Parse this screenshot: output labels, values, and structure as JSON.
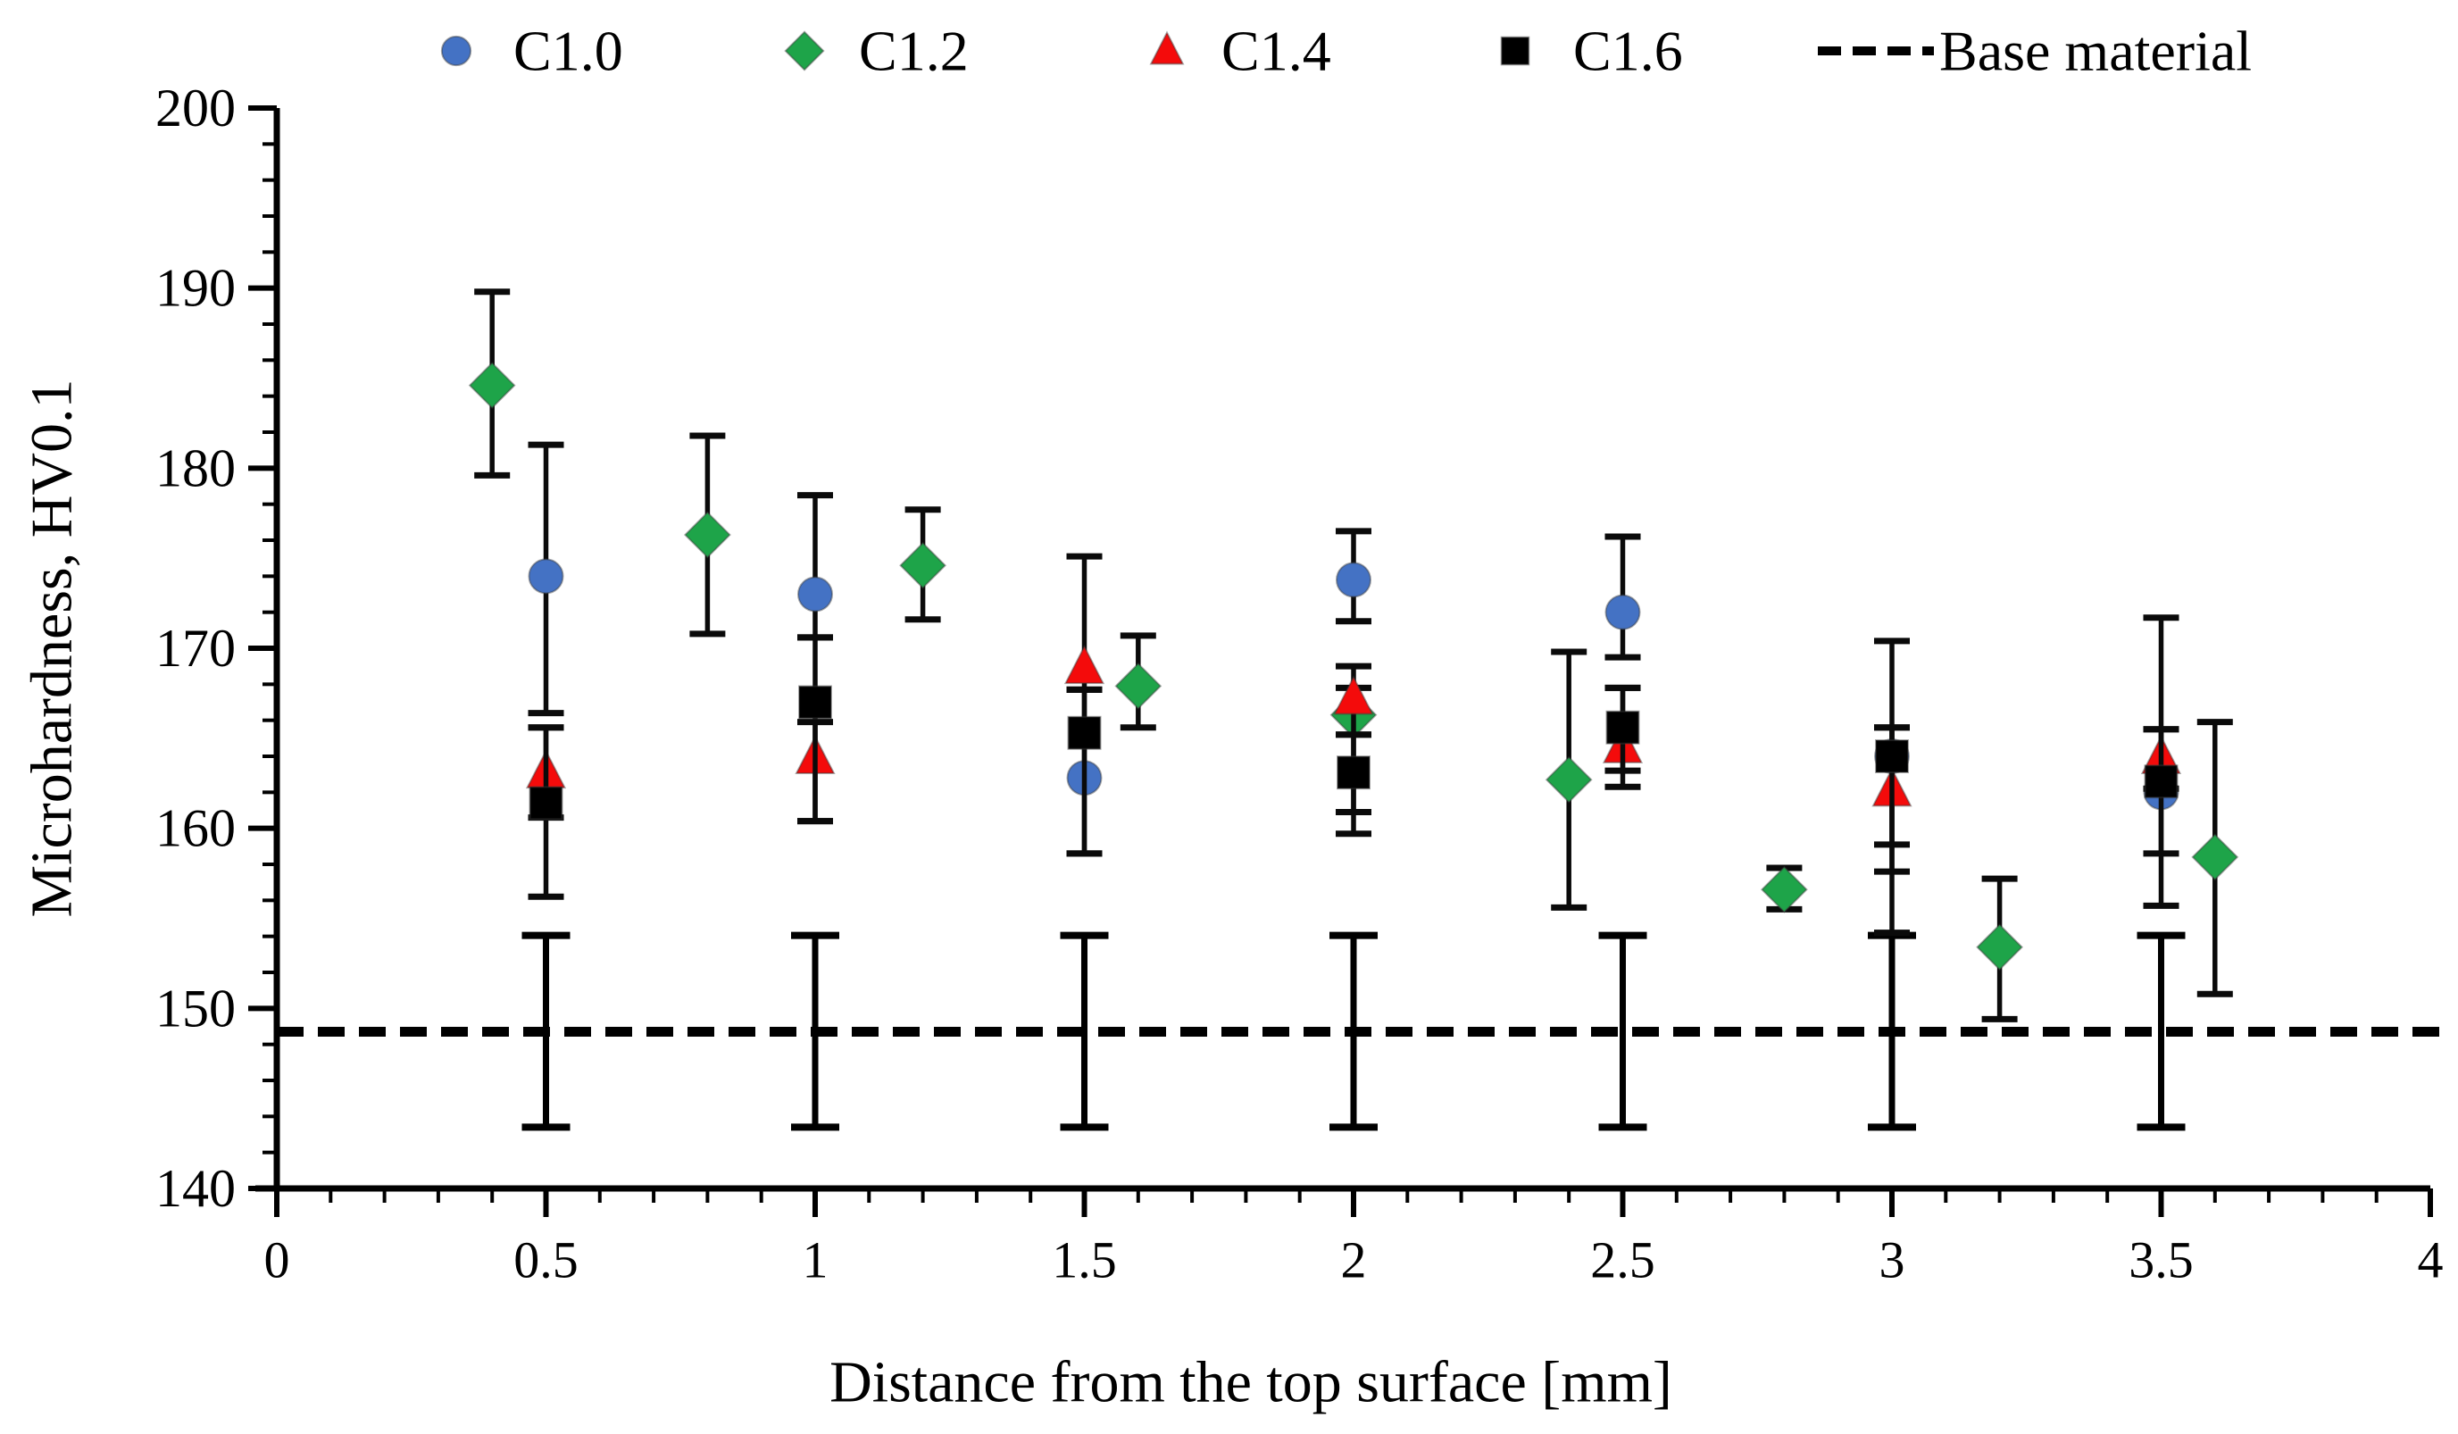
{
  "figure_title": "Microhardness profile chart",
  "chart_data": {
    "type": "scatter",
    "title": "",
    "xlabel": "Distance from the top surface [mm]",
    "ylabel": "Microhardness, HV0.1",
    "xlim": [
      0,
      4
    ],
    "ylim": [
      140,
      200
    ],
    "grid": false,
    "legend_position": "top",
    "x_tick_labels": [
      "0",
      "0.5",
      "1",
      "1.5",
      "2",
      "2.5",
      "3",
      "3.5",
      "4"
    ],
    "x_tick_values": [
      0,
      0.5,
      1,
      1.5,
      2,
      2.5,
      3,
      3.5,
      4
    ],
    "x_minor_step": 0.1,
    "y_tick_labels": [
      "140",
      "150",
      "160",
      "170",
      "180",
      "190",
      "200"
    ],
    "y_tick_values": [
      140,
      150,
      160,
      170,
      180,
      190,
      200
    ],
    "y_minor_step": 2,
    "axis_color": "#000000",
    "series": [
      {
        "name": "C1.0",
        "marker": "circle",
        "color": "#4472C4",
        "points": [
          {
            "x": 0.5,
            "y": 174.0,
            "eu": 7.3,
            "ed": 7.6
          },
          {
            "x": 1.0,
            "y": 173.0,
            "eu": 5.5,
            "ed": 2.4
          },
          {
            "x": 1.5,
            "y": 162.8,
            "eu": 4.9,
            "ed": 4.2
          },
          {
            "x": 2.0,
            "y": 173.8,
            "eu": 2.7,
            "ed": 2.3
          },
          {
            "x": 2.5,
            "y": 172.0,
            "eu": 4.2,
            "ed": 2.5
          },
          {
            "x": 3.0,
            "y": 164.0,
            "eu": 6.4,
            "ed": 6.4
          },
          {
            "x": 3.5,
            "y": 162.0,
            "eu": 9.7,
            "ed": 3.4
          }
        ]
      },
      {
        "name": "C1.2",
        "marker": "diamond",
        "color": "#1EA449",
        "points": [
          {
            "x": 0.4,
            "y": 184.6,
            "eu": 5.2,
            "ed": 5.0
          },
          {
            "x": 0.8,
            "y": 176.3,
            "eu": 5.5,
            "ed": 5.5
          },
          {
            "x": 1.2,
            "y": 174.6,
            "eu": 3.1,
            "ed": 3.0
          },
          {
            "x": 1.6,
            "y": 167.9,
            "eu": 2.8,
            "ed": 2.3
          },
          {
            "x": 2.0,
            "y": 166.3,
            "eu": 1.5,
            "ed": 1.1
          },
          {
            "x": 2.4,
            "y": 162.7,
            "eu": 7.1,
            "ed": 7.1
          },
          {
            "x": 2.8,
            "y": 156.6,
            "eu": 1.2,
            "ed": 1.1
          },
          {
            "x": 3.2,
            "y": 153.4,
            "eu": 3.8,
            "ed": 4.0
          },
          {
            "x": 3.6,
            "y": 158.4,
            "eu": 7.5,
            "ed": 7.6
          }
        ]
      },
      {
        "name": "C1.4",
        "marker": "triangle",
        "color": "#F40B0B",
        "points": [
          {
            "x": 0.5,
            "y": 163.1,
            "eu": 2.5,
            "ed": 2.5
          },
          {
            "x": 1.0,
            "y": 163.9,
            "eu": 2.0,
            "ed": 3.5
          },
          {
            "x": 1.5,
            "y": 168.9,
            "eu": 6.2,
            "ed": 1.2
          },
          {
            "x": 2.0,
            "y": 167.2,
            "eu": 1.8,
            "ed": 6.3
          },
          {
            "x": 2.5,
            "y": 164.5,
            "eu": 3.3,
            "ed": 2.2
          },
          {
            "x": 3.0,
            "y": 162.1,
            "eu": 3.5,
            "ed": 3.0
          },
          {
            "x": 3.5,
            "y": 163.9,
            "eu": 1.6,
            "ed": 1.7
          }
        ]
      },
      {
        "name": "C1.6",
        "marker": "square",
        "color": "#000000",
        "points": [
          {
            "x": 0.5,
            "y": 161.4,
            "eu": 4.2,
            "ed": 5.2
          },
          {
            "x": 1.0,
            "y": 167.0,
            "eu": 3.6,
            "ed": 6.6
          },
          {
            "x": 1.5,
            "y": 165.3,
            "eu": 2.4,
            "ed": 6.7
          },
          {
            "x": 2.0,
            "y": 163.1,
            "eu": 2.1,
            "ed": 3.4
          },
          {
            "x": 2.5,
            "y": 165.6,
            "eu": 2.2,
            "ed": 2.4
          },
          {
            "x": 3.0,
            "y": 164.0,
            "eu": 1.6,
            "ed": 9.8
          },
          {
            "x": 3.5,
            "y": 162.6,
            "eu": 2.9,
            "ed": 6.9
          }
        ]
      }
    ],
    "baseline": {
      "name": "Base material",
      "style": "dashed",
      "color": "#000000",
      "value": 148.7,
      "error_bar_xs": [
        0.5,
        1.0,
        1.5,
        2.0,
        2.5,
        3.0,
        3.5
      ],
      "error_up": 5.35,
      "error_down": 5.3
    }
  }
}
